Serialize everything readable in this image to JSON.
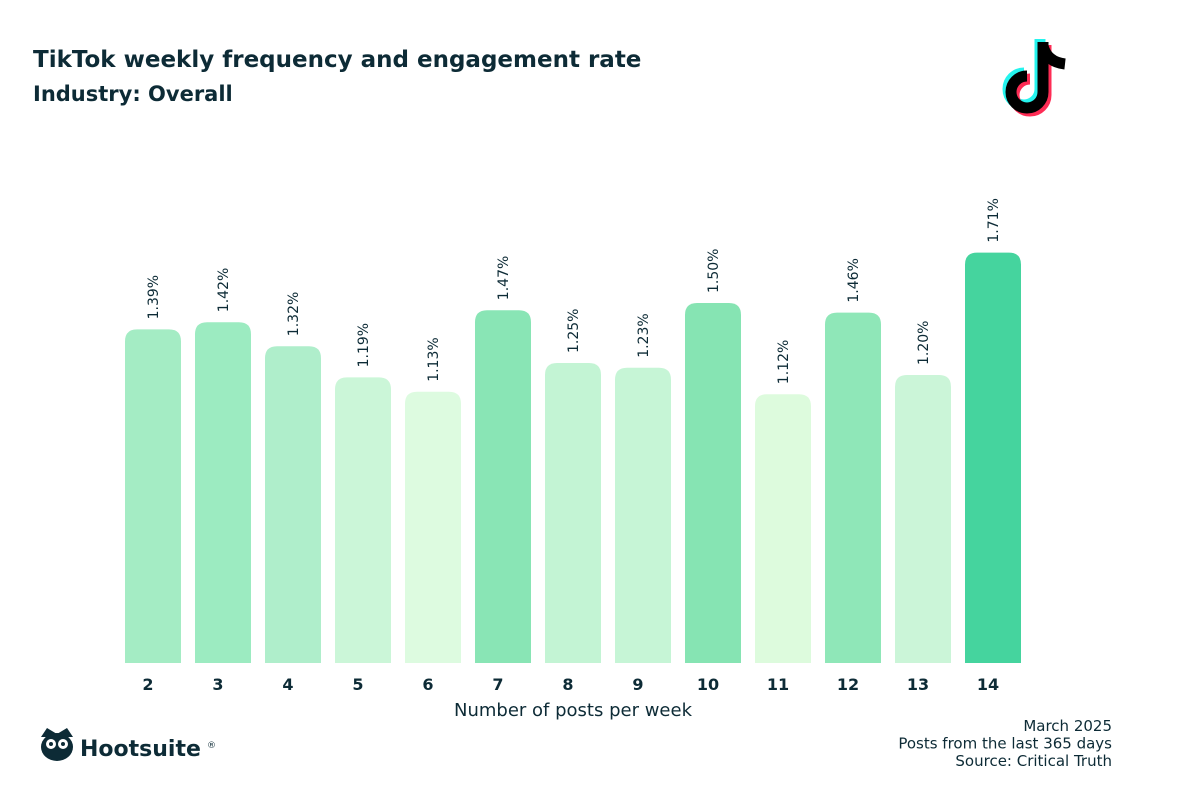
{
  "chart_data": {
    "type": "bar",
    "title": "TikTok weekly frequency and engagement rate",
    "subtitle": "Industry: Overall",
    "x_label": "Number of posts per week",
    "categories": [
      "2",
      "3",
      "4",
      "5",
      "6",
      "7",
      "8",
      "9",
      "10",
      "11",
      "12",
      "13",
      "14"
    ],
    "values": [
      1.39,
      1.42,
      1.32,
      1.19,
      1.13,
      1.47,
      1.25,
      1.23,
      1.5,
      1.12,
      1.46,
      1.2,
      1.71
    ],
    "value_labels": [
      "1.39%",
      "1.42%",
      "1.32%",
      "1.19%",
      "1.13%",
      "1.47%",
      "1.25%",
      "1.23%",
      "1.50%",
      "1.12%",
      "1.46%",
      "1.20%",
      "1.71%"
    ],
    "colors": [
      "#a4ecc4",
      "#9cebc1",
      "#afeecb",
      "#cbf6d8",
      "#ddfbe0",
      "#89e5b5",
      "#c3f4d4",
      "#c6f5d6",
      "#86e4b3",
      "#ddfbdd",
      "#8fe7b8",
      "#cbf5d8",
      "#45d49e"
    ],
    "ylim": [
      0,
      2
    ],
    "footnotes": [
      "March 2025",
      "Posts from the last 365 days",
      "Source: Critical Truth"
    ],
    "brand": "Hootsuite",
    "brand_mark": "®"
  }
}
